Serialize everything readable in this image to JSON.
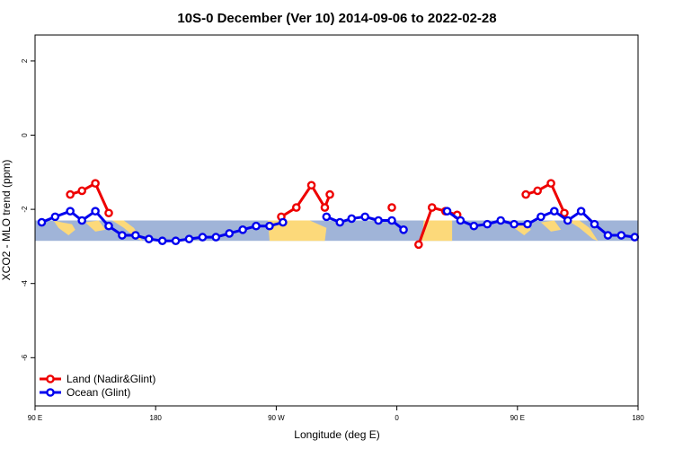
{
  "chart_data": {
    "type": "line",
    "title": "10S-0 December (Ver 10)   2014-09-06 to 2022-02-28",
    "xlabel": "Longitude (deg E)",
    "ylabel": "XCO2 - MLO trend (ppm)",
    "xlim": [
      90,
      450
    ],
    "ylim": [
      -7.3,
      2.7
    ],
    "x_ticks": [
      {
        "value": 90,
        "label": "90 E"
      },
      {
        "value": 162,
        "label": "180"
      },
      {
        "value": 234,
        "label": "90 W"
      },
      {
        "value": 306,
        "label": "0"
      },
      {
        "value": 378,
        "label": "90 E"
      },
      {
        "value": 450,
        "label": "180"
      }
    ],
    "y_ticks": [
      {
        "value": 2,
        "label": "2"
      },
      {
        "value": 0,
        "label": "0"
      },
      {
        "value": -2,
        "label": "-2"
      },
      {
        "value": -4,
        "label": "-4"
      },
      {
        "value": -6,
        "label": "-6"
      }
    ],
    "background_band": {
      "ymin": -2.85,
      "ymax": -2.3,
      "ocean_color": "#a0b4d8",
      "land_color": "#fcd97a"
    },
    "land_regions": [
      [
        {
          "x": 101,
          "y": -2.3
        },
        {
          "x": 104,
          "y": -2.5
        },
        {
          "x": 110,
          "y": -2.7
        },
        {
          "x": 114,
          "y": -2.55
        },
        {
          "x": 112,
          "y": -2.4
        },
        {
          "x": 106,
          "y": -2.35
        }
      ],
      [
        {
          "x": 120,
          "y": -2.35
        },
        {
          "x": 126,
          "y": -2.6
        },
        {
          "x": 132,
          "y": -2.55
        },
        {
          "x": 128,
          "y": -2.3
        }
      ],
      [
        {
          "x": 136,
          "y": -2.3
        },
        {
          "x": 143,
          "y": -2.5
        },
        {
          "x": 151,
          "y": -2.8
        },
        {
          "x": 154,
          "y": -2.85
        },
        {
          "x": 149,
          "y": -2.5
        },
        {
          "x": 143,
          "y": -2.3
        }
      ],
      [
        {
          "x": 229,
          "y": -2.3
        },
        {
          "x": 230,
          "y": -2.85
        },
        {
          "x": 263,
          "y": -2.85
        },
        {
          "x": 264,
          "y": -2.5
        },
        {
          "x": 254,
          "y": -2.3
        }
      ],
      [
        {
          "x": 322,
          "y": -2.3
        },
        {
          "x": 321,
          "y": -2.85
        },
        {
          "x": 339,
          "y": -2.85
        },
        {
          "x": 339,
          "y": -2.3
        }
      ],
      [
        {
          "x": 373,
          "y": -2.3
        },
        {
          "x": 376,
          "y": -2.5
        },
        {
          "x": 382,
          "y": -2.7
        },
        {
          "x": 386,
          "y": -2.55
        },
        {
          "x": 384,
          "y": -2.4
        },
        {
          "x": 378,
          "y": -2.35
        }
      ],
      [
        {
          "x": 392,
          "y": -2.35
        },
        {
          "x": 398,
          "y": -2.6
        },
        {
          "x": 404,
          "y": -2.55
        },
        {
          "x": 400,
          "y": -2.3
        }
      ],
      [
        {
          "x": 408,
          "y": -2.3
        },
        {
          "x": 415,
          "y": -2.5
        },
        {
          "x": 423,
          "y": -2.8
        },
        {
          "x": 426,
          "y": -2.85
        },
        {
          "x": 421,
          "y": -2.5
        },
        {
          "x": 415,
          "y": -2.3
        }
      ]
    ],
    "legend_position": "bottom-left",
    "series": [
      {
        "name": "Land (Nadir&Glint)",
        "color": "#ee0000",
        "segments": [
          [
            {
              "x": 111,
              "y": -1.6
            },
            {
              "x": 118,
              "y": -1.5
            },
            {
              "x": 126,
              "y": -1.3
            },
            {
              "x": 134,
              "y": -2.1
            }
          ],
          [
            {
              "x": 237,
              "y": -2.2
            },
            {
              "x": 246,
              "y": -1.95
            },
            {
              "x": 255,
              "y": -1.35
            },
            {
              "x": 263,
              "y": -1.95
            },
            {
              "x": 266,
              "y": -1.6
            }
          ],
          [
            {
              "x": 303,
              "y": -1.95
            }
          ],
          [
            {
              "x": 319,
              "y": -2.95
            },
            {
              "x": 327,
              "y": -1.95
            },
            {
              "x": 335,
              "y": -2.05
            },
            {
              "x": 342,
              "y": -2.15
            }
          ],
          [
            {
              "x": 383,
              "y": -1.6
            },
            {
              "x": 390,
              "y": -1.5
            },
            {
              "x": 398,
              "y": -1.3
            },
            {
              "x": 406,
              "y": -2.1
            }
          ]
        ]
      },
      {
        "name": "Ocean (Glint)",
        "color": "#0000ee",
        "segments": [
          [
            {
              "x": 94,
              "y": -2.35
            },
            {
              "x": 102,
              "y": -2.2
            },
            {
              "x": 111,
              "y": -2.05
            },
            {
              "x": 118,
              "y": -2.3
            },
            {
              "x": 126,
              "y": -2.05
            },
            {
              "x": 134,
              "y": -2.45
            },
            {
              "x": 142,
              "y": -2.7
            },
            {
              "x": 150,
              "y": -2.7
            },
            {
              "x": 158,
              "y": -2.8
            },
            {
              "x": 166,
              "y": -2.85
            },
            {
              "x": 174,
              "y": -2.85
            },
            {
              "x": 182,
              "y": -2.8
            },
            {
              "x": 190,
              "y": -2.75
            },
            {
              "x": 198,
              "y": -2.75
            },
            {
              "x": 206,
              "y": -2.65
            },
            {
              "x": 214,
              "y": -2.55
            },
            {
              "x": 222,
              "y": -2.45
            },
            {
              "x": 230,
              "y": -2.45
            },
            {
              "x": 238,
              "y": -2.35
            }
          ],
          [
            {
              "x": 264,
              "y": -2.2
            },
            {
              "x": 272,
              "y": -2.35
            },
            {
              "x": 279,
              "y": -2.25
            },
            {
              "x": 287,
              "y": -2.2
            },
            {
              "x": 295,
              "y": -2.3
            },
            {
              "x": 303,
              "y": -2.3
            },
            {
              "x": 310,
              "y": -2.55
            }
          ],
          [
            {
              "x": 336,
              "y": -2.05
            },
            {
              "x": 344,
              "y": -2.3
            },
            {
              "x": 352,
              "y": -2.45
            },
            {
              "x": 360,
              "y": -2.4
            },
            {
              "x": 368,
              "y": -2.3
            },
            {
              "x": 376,
              "y": -2.4
            },
            {
              "x": 384,
              "y": -2.4
            },
            {
              "x": 392,
              "y": -2.2
            },
            {
              "x": 400,
              "y": -2.05
            },
            {
              "x": 408,
              "y": -2.3
            },
            {
              "x": 416,
              "y": -2.05
            },
            {
              "x": 424,
              "y": -2.4
            },
            {
              "x": 432,
              "y": -2.7
            },
            {
              "x": 440,
              "y": -2.7
            },
            {
              "x": 448,
              "y": -2.75
            }
          ]
        ]
      }
    ]
  }
}
